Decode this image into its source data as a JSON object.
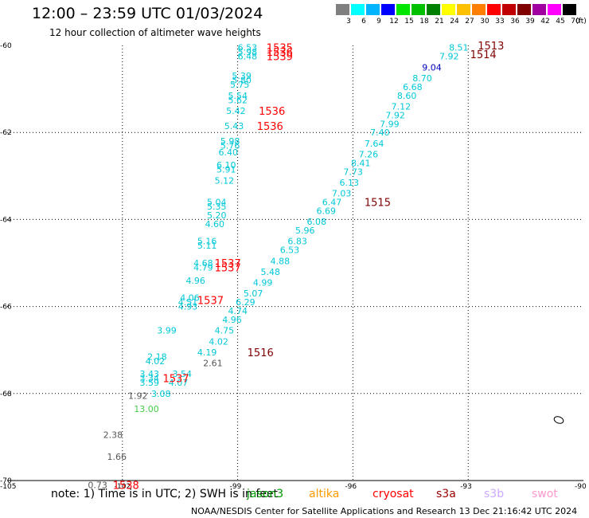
{
  "header": {
    "title": "12:00 – 23:59 UTC 01/03/2024",
    "subtitle": "12 hour collection of altimeter wave heights"
  },
  "legend": {
    "unit": "(ft)",
    "bins": [
      {
        "label": "3",
        "color": "#7f7f7f"
      },
      {
        "label": "6",
        "color": "#00ffff"
      },
      {
        "label": "9",
        "color": "#00b4ff"
      },
      {
        "label": "12",
        "color": "#0000ff"
      },
      {
        "label": "15",
        "color": "#00e600"
      },
      {
        "label": "18",
        "color": "#00c000"
      },
      {
        "label": "21",
        "color": "#008000"
      },
      {
        "label": "24",
        "color": "#ffff00"
      },
      {
        "label": "27",
        "color": "#ffc000"
      },
      {
        "label": "30",
        "color": "#ff7f00"
      },
      {
        "label": "33",
        "color": "#ff0000"
      },
      {
        "label": "36",
        "color": "#c00000"
      },
      {
        "label": "39",
        "color": "#800000"
      },
      {
        "label": "42",
        "color": "#a000a0"
      },
      {
        "label": "45",
        "color": "#ff00ff"
      },
      {
        "label": "70",
        "color": "#000000"
      }
    ]
  },
  "axes": {
    "lat_ticks": [
      "-60",
      "-62",
      "-64",
      "-66",
      "-68",
      "-70"
    ],
    "lon_ticks": [
      "-105",
      "-102",
      "-99",
      "-96",
      "-93",
      "-90"
    ]
  },
  "colors": {
    "swh_cyan": "#00c8d8",
    "swh_blue": "#0000c0",
    "swh_gray": "#555555",
    "swh_green": "#44cc44",
    "track_red": "#ff0000",
    "track_darkred": "#800000"
  },
  "swh_labels": [
    {
      "t": "6.53",
      "lon": -99.0,
      "lat": -60.05,
      "c": "cyan"
    },
    {
      "t": "5.98",
      "lon": -99.0,
      "lat": -60.15,
      "c": "cyan"
    },
    {
      "t": "6.48",
      "lon": -99.0,
      "lat": -60.25,
      "c": "cyan"
    },
    {
      "t": "5.39",
      "lon": -99.15,
      "lat": -60.7,
      "c": "cyan"
    },
    {
      "t": "5.80",
      "lon": -99.15,
      "lat": -60.8,
      "c": "cyan"
    },
    {
      "t": "5.75",
      "lon": -99.2,
      "lat": -60.9,
      "c": "cyan"
    },
    {
      "t": "5.54",
      "lon": -99.25,
      "lat": -61.15,
      "c": "cyan"
    },
    {
      "t": "5.62",
      "lon": -99.25,
      "lat": -61.25,
      "c": "cyan"
    },
    {
      "t": "5.42",
      "lon": -99.3,
      "lat": -61.5,
      "c": "cyan"
    },
    {
      "t": "5.43",
      "lon": -99.35,
      "lat": -61.85,
      "c": "cyan"
    },
    {
      "t": "5.98",
      "lon": -99.45,
      "lat": -62.2,
      "c": "cyan"
    },
    {
      "t": "5.76",
      "lon": -99.45,
      "lat": -62.3,
      "c": "cyan"
    },
    {
      "t": "6.40",
      "lon": -99.5,
      "lat": -62.45,
      "c": "cyan"
    },
    {
      "t": "6.10",
      "lon": -99.55,
      "lat": -62.75,
      "c": "cyan"
    },
    {
      "t": "5.91",
      "lon": -99.55,
      "lat": -62.85,
      "c": "cyan"
    },
    {
      "t": "5.12",
      "lon": -99.6,
      "lat": -63.1,
      "c": "cyan"
    },
    {
      "t": "5.04",
      "lon": -99.8,
      "lat": -63.6,
      "c": "cyan"
    },
    {
      "t": "5.35",
      "lon": -99.8,
      "lat": -63.7,
      "c": "cyan"
    },
    {
      "t": "5.20",
      "lon": -99.8,
      "lat": -63.9,
      "c": "cyan"
    },
    {
      "t": "4.60",
      "lon": -99.85,
      "lat": -64.1,
      "c": "cyan"
    },
    {
      "t": "5.16",
      "lon": -100.05,
      "lat": -64.5,
      "c": "cyan"
    },
    {
      "t": "5.11",
      "lon": -100.05,
      "lat": -64.6,
      "c": "cyan"
    },
    {
      "t": "4.68",
      "lon": -100.15,
      "lat": -65.0,
      "c": "cyan"
    },
    {
      "t": "4.79",
      "lon": -100.15,
      "lat": -65.1,
      "c": "cyan"
    },
    {
      "t": "4.96",
      "lon": -100.35,
      "lat": -65.4,
      "c": "cyan"
    },
    {
      "t": "4.06",
      "lon": -100.5,
      "lat": -65.8,
      "c": "cyan"
    },
    {
      "t": "4.51",
      "lon": -100.55,
      "lat": -65.9,
      "c": "cyan"
    },
    {
      "t": "4.93",
      "lon": -100.55,
      "lat": -66.0,
      "c": "cyan"
    },
    {
      "t": "3.99",
      "lon": -101.1,
      "lat": -66.55,
      "c": "cyan"
    },
    {
      "t": "2.18",
      "lon": -101.35,
      "lat": -67.15,
      "c": "cyan"
    },
    {
      "t": "4.02",
      "lon": -101.4,
      "lat": -67.25,
      "c": "cyan"
    },
    {
      "t": "3.43",
      "lon": -101.55,
      "lat": -67.55,
      "c": "cyan"
    },
    {
      "t": "3.34",
      "lon": -101.55,
      "lat": -67.65,
      "c": "cyan"
    },
    {
      "t": "3.59",
      "lon": -101.55,
      "lat": -67.75,
      "c": "cyan"
    },
    {
      "t": "3.54",
      "lon": -100.7,
      "lat": -67.55,
      "c": "cyan"
    },
    {
      "t": "4.07",
      "lon": -100.8,
      "lat": -67.75,
      "c": "cyan"
    },
    {
      "t": "3.08",
      "lon": -101.25,
      "lat": -68.0,
      "c": "cyan"
    },
    {
      "t": "2.61",
      "lon": -99.9,
      "lat": -67.3,
      "c": "gray"
    },
    {
      "t": "1.92",
      "lon": -101.85,
      "lat": -68.05,
      "c": "gray"
    },
    {
      "t": "13.00",
      "lon": -101.7,
      "lat": -68.35,
      "c": "green"
    },
    {
      "t": "2.38",
      "lon": -102.5,
      "lat": -68.95,
      "c": "gray"
    },
    {
      "t": "1.66",
      "lon": -102.4,
      "lat": -69.45,
      "c": "gray"
    },
    {
      "t": "0.73",
      "lon": -102.9,
      "lat": -70.1,
      "c": "gray"
    },
    {
      "t": "8.51",
      "lon": -93.5,
      "lat": -60.05,
      "c": "cyan"
    },
    {
      "t": "7.92",
      "lon": -93.75,
      "lat": -60.25,
      "c": "cyan"
    },
    {
      "t": "9.04",
      "lon": -94.2,
      "lat": -60.5,
      "c": "blue"
    },
    {
      "t": "8.70",
      "lon": -94.45,
      "lat": -60.75,
      "c": "cyan"
    },
    {
      "t": "6.68",
      "lon": -94.7,
      "lat": -60.95,
      "c": "cyan"
    },
    {
      "t": "8.60",
      "lon": -94.85,
      "lat": -61.15,
      "c": "cyan"
    },
    {
      "t": "7.12",
      "lon": -95.0,
      "lat": -61.4,
      "c": "cyan"
    },
    {
      "t": "7.92",
      "lon": -95.15,
      "lat": -61.6,
      "c": "cyan"
    },
    {
      "t": "7.99",
      "lon": -95.3,
      "lat": -61.8,
      "c": "cyan"
    },
    {
      "t": "7.40",
      "lon": -95.55,
      "lat": -62.0,
      "c": "cyan"
    },
    {
      "t": "7.64",
      "lon": -95.7,
      "lat": -62.25,
      "c": "cyan"
    },
    {
      "t": "7.26",
      "lon": -95.85,
      "lat": -62.5,
      "c": "cyan"
    },
    {
      "t": "8.41",
      "lon": -96.05,
      "lat": -62.7,
      "c": "cyan"
    },
    {
      "t": "7.73",
      "lon": -96.25,
      "lat": -62.9,
      "c": "cyan"
    },
    {
      "t": "6.13",
      "lon": -96.35,
      "lat": -63.15,
      "c": "cyan"
    },
    {
      "t": "7.03",
      "lon": -96.55,
      "lat": -63.4,
      "c": "cyan"
    },
    {
      "t": "6.47",
      "lon": -96.8,
      "lat": -63.6,
      "c": "cyan"
    },
    {
      "t": "6.69",
      "lon": -96.95,
      "lat": -63.8,
      "c": "cyan"
    },
    {
      "t": "6.08",
      "lon": -97.2,
      "lat": -64.05,
      "c": "cyan"
    },
    {
      "t": "5.96",
      "lon": -97.5,
      "lat": -64.25,
      "c": "cyan"
    },
    {
      "t": "6.83",
      "lon": -97.7,
      "lat": -64.5,
      "c": "cyan"
    },
    {
      "t": "6.53",
      "lon": -97.9,
      "lat": -64.7,
      "c": "cyan"
    },
    {
      "t": "4.88",
      "lon": -98.15,
      "lat": -64.95,
      "c": "cyan"
    },
    {
      "t": "5.48",
      "lon": -98.4,
      "lat": -65.2,
      "c": "cyan"
    },
    {
      "t": "4.99",
      "lon": -98.6,
      "lat": -65.45,
      "c": "cyan"
    },
    {
      "t": "5.07",
      "lon": -98.85,
      "lat": -65.7,
      "c": "cyan"
    },
    {
      "t": "6.29",
      "lon": -99.05,
      "lat": -65.9,
      "c": "cyan"
    },
    {
      "t": "4.74",
      "lon": -99.25,
      "lat": -66.1,
      "c": "cyan"
    },
    {
      "t": "4.96",
      "lon": -99.4,
      "lat": -66.3,
      "c": "cyan"
    },
    {
      "t": "4.75",
      "lon": -99.6,
      "lat": -66.55,
      "c": "cyan"
    },
    {
      "t": "4.02",
      "lon": -99.75,
      "lat": -66.8,
      "c": "cyan"
    },
    {
      "t": "4.19",
      "lon": -100.05,
      "lat": -67.05,
      "c": "cyan"
    }
  ],
  "track_labels": [
    {
      "t": "1535",
      "lon": -98.25,
      "lat": -60.05,
      "c": "red"
    },
    {
      "t": "1536",
      "lon": -98.25,
      "lat": -60.15,
      "c": "red"
    },
    {
      "t": "1539",
      "lon": -98.25,
      "lat": -60.25,
      "c": "red"
    },
    {
      "t": "1536",
      "lon": -98.45,
      "lat": -61.5,
      "c": "red"
    },
    {
      "t": "1536",
      "lon": -98.5,
      "lat": -61.85,
      "c": "red"
    },
    {
      "t": "1537",
      "lon": -99.6,
      "lat": -65.0,
      "c": "red"
    },
    {
      "t": "1537",
      "lon": -99.6,
      "lat": -65.1,
      "c": "red"
    },
    {
      "t": "1537",
      "lon": -100.05,
      "lat": -65.85,
      "c": "red"
    },
    {
      "t": "1537",
      "lon": -100.95,
      "lat": -67.65,
      "c": "red"
    },
    {
      "t": "1538",
      "lon": -102.25,
      "lat": -70.1,
      "c": "red"
    },
    {
      "t": "1513",
      "lon": -92.75,
      "lat": -60.0,
      "c": "darkred"
    },
    {
      "t": "1514",
      "lon": -92.95,
      "lat": -60.2,
      "c": "darkred"
    },
    {
      "t": "1515",
      "lon": -95.7,
      "lat": -63.6,
      "c": "darkred"
    },
    {
      "t": "1516",
      "lon": -98.75,
      "lat": -67.05,
      "c": "darkred"
    }
  ],
  "footer": {
    "note": "note:  1) Time is in UTC; 2) SWH is in feet",
    "satellites": [
      {
        "name": "jason3",
        "color": "#009900"
      },
      {
        "name": "altika",
        "color": "#ff9900"
      },
      {
        "name": "cryosat",
        "color": "#ff0000"
      },
      {
        "name": "s3a",
        "color": "#990000"
      },
      {
        "name": "s3b",
        "color": "#ccaaff"
      },
      {
        "name": "swot",
        "color": "#ff99cc"
      }
    ],
    "credit": "NOAA/NESDIS Center for Satellite Applications and Research     13 Dec 21:16:42 UTC 2024"
  }
}
